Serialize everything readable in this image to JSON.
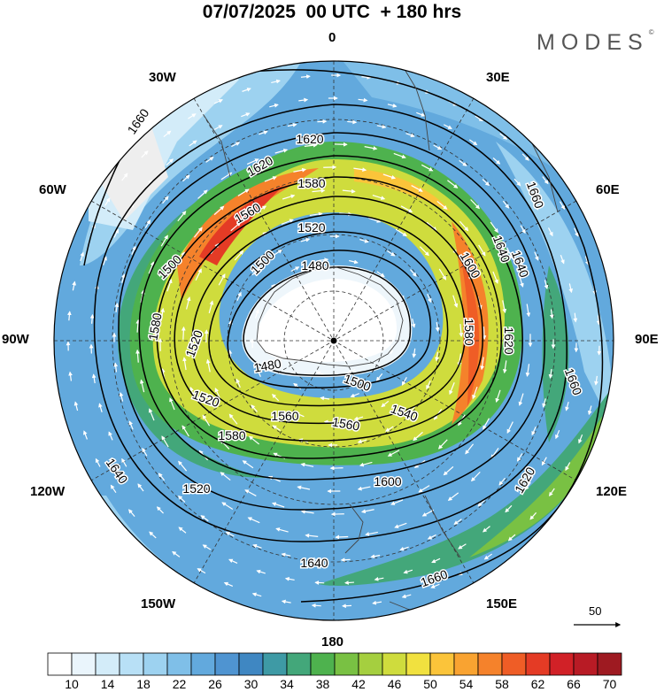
{
  "header": {
    "title": "07/07/2025  00 UTC  + 180 hrs",
    "brand": "MODES",
    "brand_mark": "©"
  },
  "map": {
    "projection": "polar-stereographic-south",
    "longitude_labels": {
      "top": "0",
      "bottom": "180",
      "left": "90W",
      "right": "90E",
      "upper_left_1": "30W",
      "upper_left_2": "60W",
      "upper_right_1": "30E",
      "upper_right_2": "60E",
      "lower_left_1": "120W",
      "lower_left_2": "150W",
      "lower_right_1": "120E",
      "lower_right_2": "150E"
    },
    "contour_labels": [
      "1660",
      "1620",
      "1620",
      "1580",
      "1560",
      "1520",
      "1500",
      "1480",
      "1600",
      "1640",
      "1580",
      "1620",
      "1660",
      "1580",
      "1520",
      "1480",
      "1500",
      "1540",
      "1560",
      "1560",
      "1520",
      "1580",
      "1500",
      "1640",
      "1620",
      "1640",
      "1660",
      "1520",
      "1600",
      "1660",
      "1640"
    ],
    "vector_reference": "50",
    "colors": {
      "background": "#ffffff",
      "contour": "#000000",
      "arrow": "#ffffff"
    }
  },
  "colorbar": {
    "ticks": [
      "10",
      "14",
      "18",
      "22",
      "26",
      "30",
      "34",
      "38",
      "42",
      "46",
      "50",
      "54",
      "58",
      "62",
      "66",
      "70"
    ],
    "colors": [
      "#ffffff",
      "#eaf5fc",
      "#d3ecf9",
      "#b8e0f6",
      "#9dd2f0",
      "#7fbfe8",
      "#62a9dd",
      "#4f94d1",
      "#3f87c2",
      "#3e9aa5",
      "#43a77a",
      "#4eb24e",
      "#79c143",
      "#a5cf3f",
      "#cfdc3d",
      "#f1e13f",
      "#fbc43a",
      "#f9a331",
      "#f5822b",
      "#ef5d26",
      "#e43b25",
      "#d12127",
      "#b81b25",
      "#9e1a21"
    ]
  }
}
